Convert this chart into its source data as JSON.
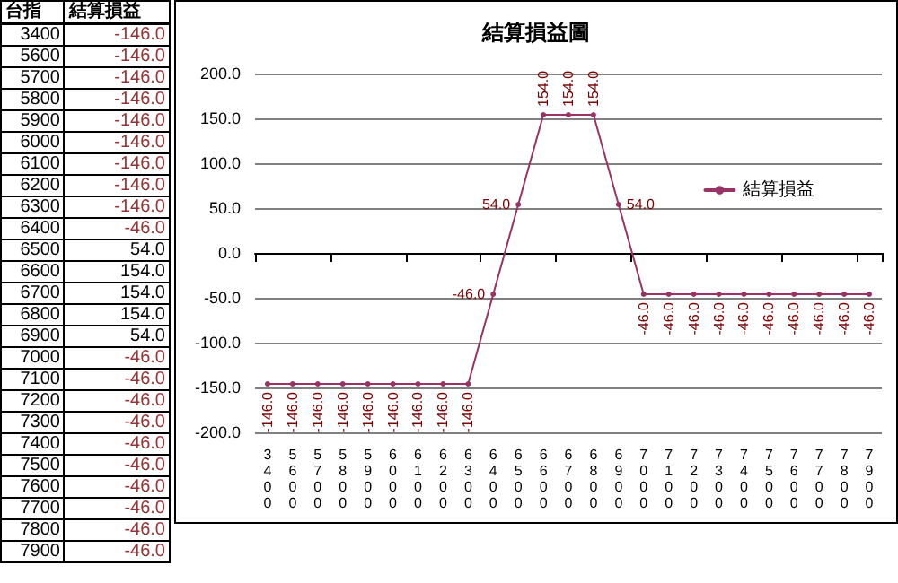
{
  "chart_data": {
    "type": "line",
    "title": "結算損益圖",
    "annotations": [
      "台指"
    ],
    "categories": [
      "3400",
      "5600",
      "5700",
      "5800",
      "5900",
      "6000",
      "6100",
      "6200",
      "6300",
      "6400",
      "6500",
      "6600",
      "6700",
      "6800",
      "6900",
      "7000",
      "7100",
      "7200",
      "7300",
      "7400",
      "7500",
      "7600",
      "7700",
      "7800",
      "7900"
    ],
    "series": [
      {
        "name": "結算損益",
        "color": "#993366",
        "values": [
          -146,
          -146,
          -146,
          -146,
          -146,
          -146,
          -146,
          -146,
          -146,
          -46,
          54,
          154,
          154,
          154,
          54,
          -46,
          -46,
          -46,
          -46,
          -46,
          -46,
          -46,
          -46,
          -46,
          -46
        ],
        "value_labels": [
          "-146.0",
          "-146.0",
          "-146.0",
          "-146.0",
          "-146.0",
          "-146.0",
          "-146.0",
          "-146.0",
          "-146.0",
          "-46.0",
          "54.0",
          "154.0",
          "154.0",
          "154.0",
          "54.0",
          "-46.0",
          "-46.0",
          "-46.0",
          "-46.0",
          "-46.0",
          "-46.0",
          "-46.0",
          "-46.0",
          "-46.0",
          "-46.0"
        ]
      }
    ],
    "ylim": [
      -200,
      200
    ],
    "yticks": [
      {
        "value": -200,
        "label": "-200.0"
      },
      {
        "value": -150,
        "label": "-150.0"
      },
      {
        "value": -100,
        "label": "-100.0"
      },
      {
        "value": -50,
        "label": "-50.0"
      },
      {
        "value": 0,
        "label": "0.0"
      },
      {
        "value": 50,
        "label": "50.0"
      },
      {
        "value": 100,
        "label": "100.0"
      },
      {
        "value": 150,
        "label": "150.0"
      },
      {
        "value": 200,
        "label": "200.0"
      }
    ],
    "grid": "y",
    "legend": "center",
    "marker": "circle",
    "line_style": "solid"
  }
}
